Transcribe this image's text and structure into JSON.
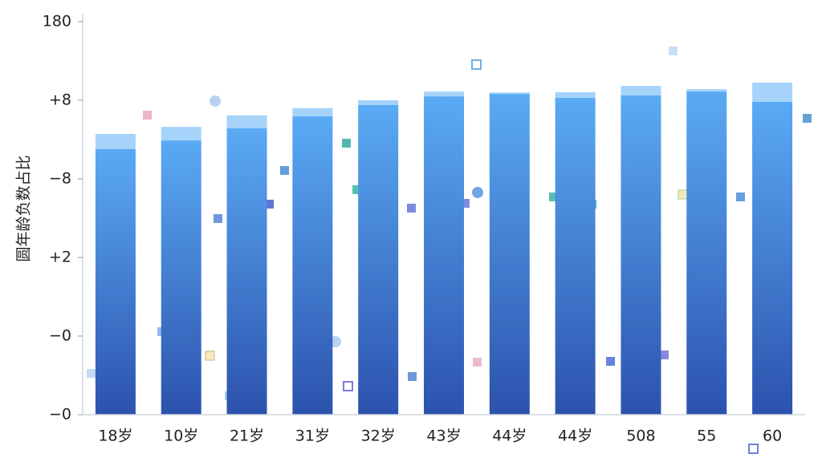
{
  "chart_data": {
    "type": "bar",
    "ylabel": "圆年龄负数占比",
    "categories": [
      "18岁",
      "10岁",
      "21岁",
      "31岁",
      "32岁",
      "43岁",
      "44岁",
      "44岁",
      "508",
      "55",
      "60"
    ],
    "series": [
      {
        "color": "#5aaaf4",
        "values": [
          121.6,
          125.6,
          131.2,
          136.7,
          141.8,
          145.8,
          146.9,
          145.1,
          146.2,
          148.0,
          143.3
        ]
      },
      {
        "color": "#a6d3fa",
        "values": [
          7.0,
          6.2,
          5.9,
          3.7,
          2.2,
          2.2,
          0.7,
          2.6,
          4.4,
          1.1,
          8.8
        ]
      }
    ],
    "stacked": true,
    "ylim": [
      0,
      180
    ],
    "yticks": [
      {
        "value": 0,
        "label": "−0"
      },
      {
        "value": 36,
        "label": "−0"
      },
      {
        "value": 72,
        "label": "+2"
      },
      {
        "value": 108,
        "label": "−8"
      },
      {
        "value": 144,
        "label": "+8"
      },
      180
    ],
    "grid": false
  }
}
